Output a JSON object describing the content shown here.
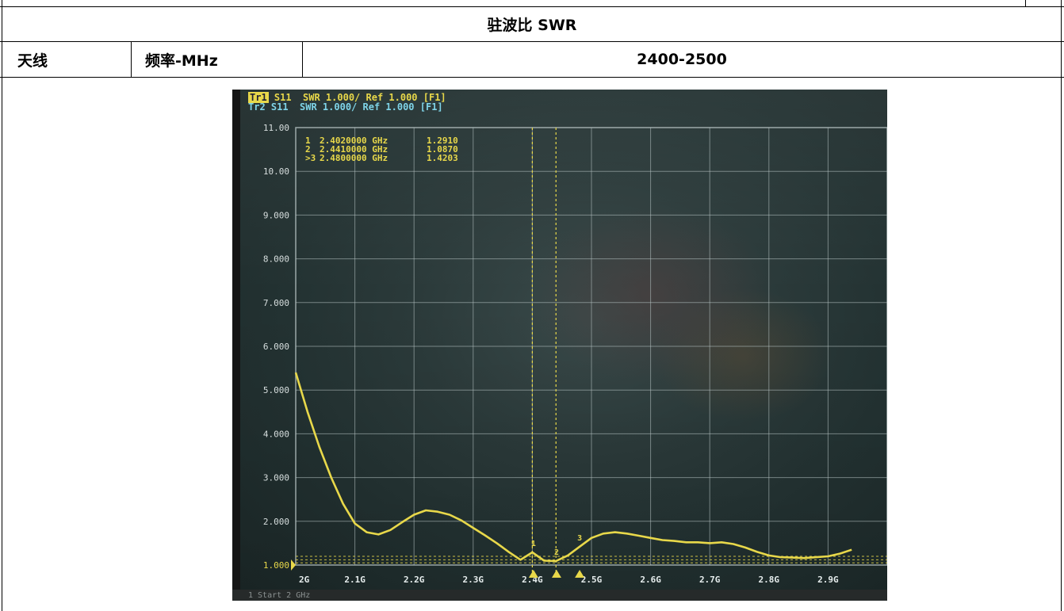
{
  "table": {
    "section_title": "驻波比 SWR",
    "col1_label": "天线",
    "col2_label": "频率-MHz",
    "col3_value": "2400-2500"
  },
  "instrument": {
    "trace1_name": "Tr1",
    "trace1_rest": " S11  SWR 1.000/ Ref 1.000 [F1]",
    "trace2_line": "Tr2 S11  SWR 1.000/ Ref 1.000 [F1]",
    "status_text": "1  Start 2 GHz",
    "colors": {
      "trace": "#e8d84a",
      "trace2": "#7fd4e8",
      "grid": "#b9c6c6",
      "text": "#e8d84a"
    }
  },
  "chart_data": {
    "type": "line",
    "title": "",
    "xlabel": "",
    "ylabel": "",
    "xlim": [
      2.0,
      3.0
    ],
    "ylim": [
      1.0,
      11.0
    ],
    "y_tick_labels": [
      "11.00",
      "10.00",
      "9.000",
      "8.000",
      "7.000",
      "6.000",
      "5.000",
      "4.000",
      "3.000",
      "2.000",
      "1.000"
    ],
    "x_tick_labels": [
      "2G",
      "2.1G",
      "2.2G",
      "2.3G",
      "2.4G",
      "2.5G",
      "2.6G",
      "2.7G",
      "2.8G",
      "2.9G"
    ],
    "x_tick_values": [
      2.0,
      2.1,
      2.2,
      2.3,
      2.4,
      2.5,
      2.6,
      2.7,
      2.8,
      2.9
    ],
    "grid": true,
    "series": [
      {
        "x": [
          2.0,
          2.02,
          2.04,
          2.06,
          2.08,
          2.1,
          2.12,
          2.14,
          2.16,
          2.18,
          2.2,
          2.22,
          2.24,
          2.26,
          2.28,
          2.3,
          2.32,
          2.34,
          2.36,
          2.38,
          2.4,
          2.42,
          2.44,
          2.46,
          2.48,
          2.5,
          2.52,
          2.54,
          2.56,
          2.58,
          2.6,
          2.62,
          2.64,
          2.66,
          2.68,
          2.7,
          2.72,
          2.74,
          2.76,
          2.78,
          2.8,
          2.82,
          2.84,
          2.86,
          2.88,
          2.9,
          2.92,
          2.94
        ],
        "y": [
          5.4,
          4.5,
          3.7,
          3.0,
          2.4,
          1.95,
          1.75,
          1.7,
          1.8,
          1.98,
          2.15,
          2.25,
          2.22,
          2.15,
          2.02,
          1.85,
          1.68,
          1.5,
          1.3,
          1.12,
          1.29,
          1.1,
          1.09,
          1.22,
          1.42,
          1.62,
          1.72,
          1.75,
          1.72,
          1.67,
          1.62,
          1.57,
          1.55,
          1.52,
          1.52,
          1.5,
          1.52,
          1.48,
          1.4,
          1.3,
          1.22,
          1.18,
          1.17,
          1.16,
          1.18,
          1.2,
          1.26,
          1.35
        ]
      }
    ],
    "markers": [
      {
        "id": "1",
        "label": "1",
        "freq": "2.4020000 GHz",
        "value": "1.2910",
        "x": 2.402,
        "y": 1.291
      },
      {
        "id": "2",
        "label": "2",
        "freq": "2.4410000 GHz",
        "value": "1.0870",
        "x": 2.441,
        "y": 1.087
      },
      {
        "id": "3",
        "label": ">3",
        "freq": "2.4800000 GHz",
        "value": "1.4203",
        "x": 2.48,
        "y": 1.4203
      }
    ],
    "vlines": [
      2.4,
      2.44
    ]
  }
}
